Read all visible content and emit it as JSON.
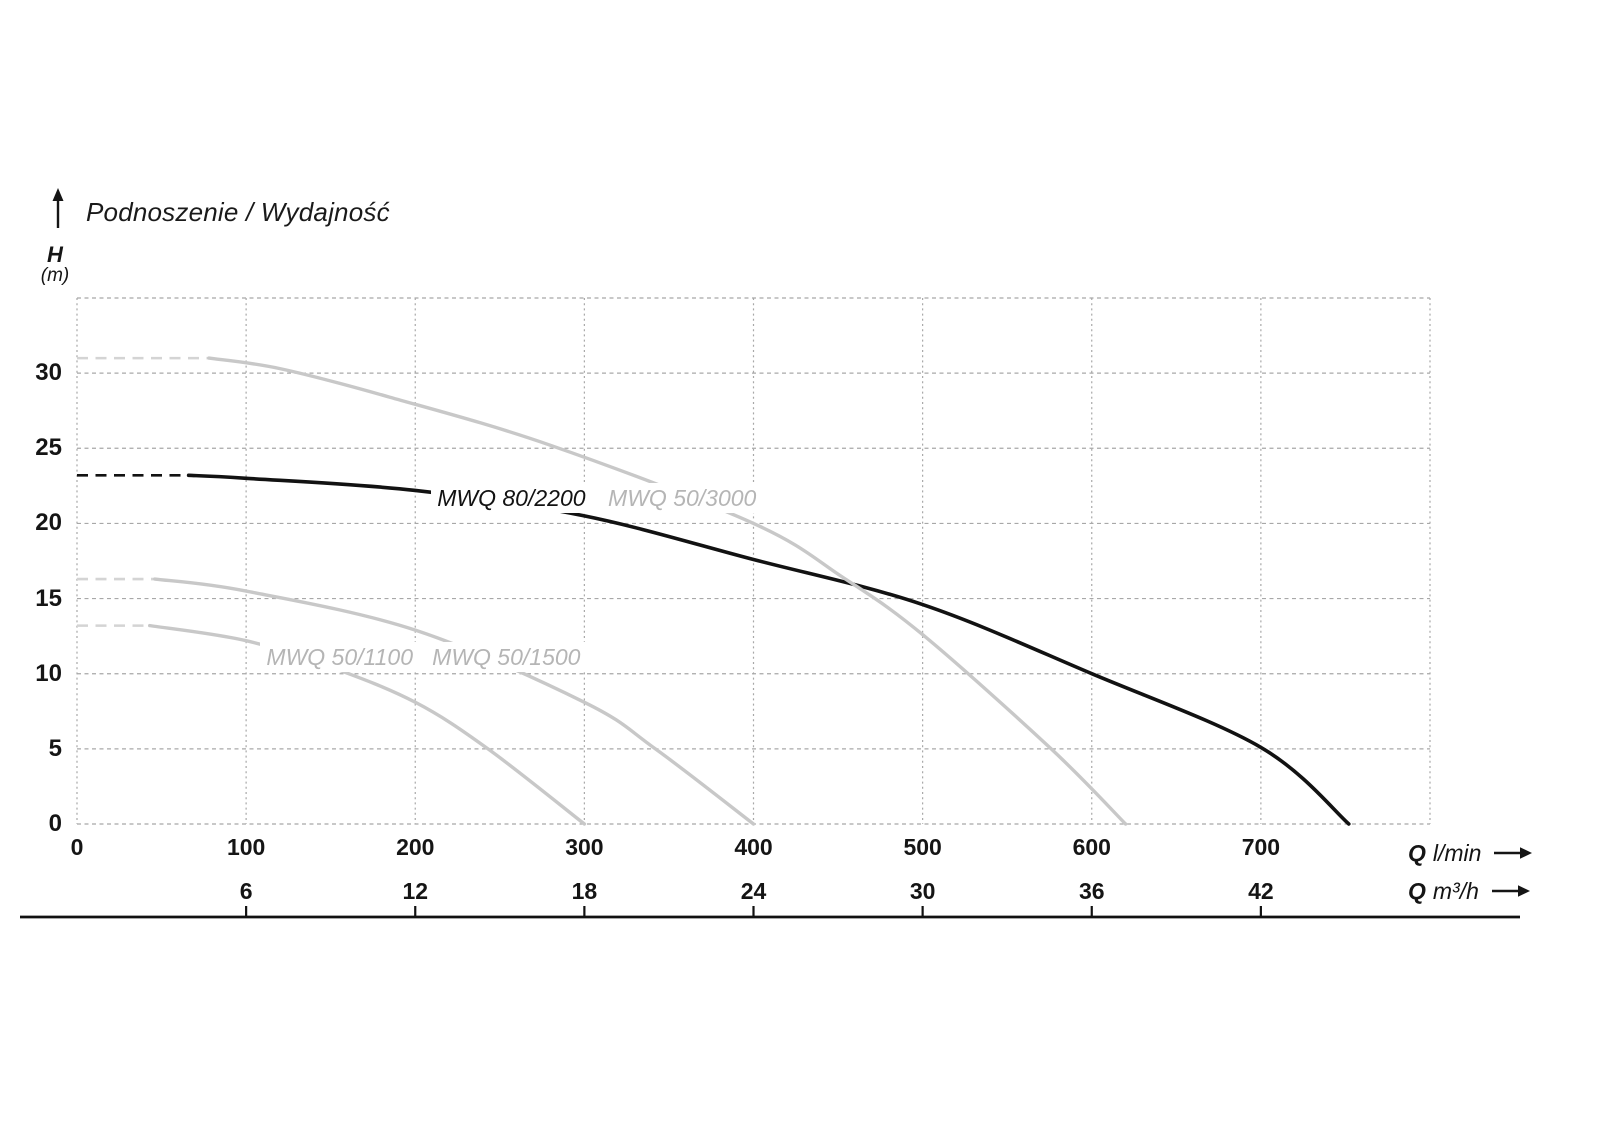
{
  "title": "Podnoszenie / Wydajność",
  "y_axis": {
    "quantity": "H",
    "unit": "(m)",
    "ticks": [
      0,
      5,
      10,
      15,
      20,
      25,
      30
    ],
    "max": 35
  },
  "x_axis_lmin": {
    "quantity": "Q",
    "unit": "l/min",
    "ticks": [
      0,
      100,
      200,
      300,
      400,
      500,
      600,
      700
    ],
    "max": 800
  },
  "x_axis_m3h": {
    "quantity": "Q",
    "unit": "m³/h",
    "ticks": [
      6,
      12,
      18,
      24,
      30,
      36,
      42
    ]
  },
  "chart_data": {
    "type": "line",
    "title": "Podnoszenie / Wydajność",
    "ylabel": "H (m)",
    "xlabel_primary": "Q l/min",
    "xlabel_secondary": "Q m³/h",
    "xlim": [
      0,
      800
    ],
    "ylim": [
      0,
      35
    ],
    "y_tick_step": 5,
    "x_tick_step": 100,
    "grid": true,
    "series": [
      {
        "name": "MWQ 80/2200",
        "color": "#121212",
        "dash_color": "#121212",
        "label_color": "#121212",
        "dashed_lead_until_q": 66,
        "points": [
          [
            0,
            23.2
          ],
          [
            66,
            23.2
          ],
          [
            100,
            23.0
          ],
          [
            200,
            22.2
          ],
          [
            300,
            20.5
          ],
          [
            400,
            17.6
          ],
          [
            500,
            14.6
          ],
          [
            600,
            10.0
          ],
          [
            700,
            5.1
          ],
          [
            752,
            0
          ]
        ],
        "label_pos": [
          213,
          21.7
        ]
      },
      {
        "name": "MWQ 50/3000",
        "color": "#c8c8c8",
        "dash_color": "#d4d4d4",
        "label_color": "#b5b5b5",
        "dashed_lead_until_q": 78,
        "points": [
          [
            0,
            31.0
          ],
          [
            78,
            31.0
          ],
          [
            120,
            30.3
          ],
          [
            185,
            28.4
          ],
          [
            280,
            25.2
          ],
          [
            400,
            20.0
          ],
          [
            453,
            16.4
          ],
          [
            500,
            12.6
          ],
          [
            576,
            5.0
          ],
          [
            620,
            0
          ]
        ],
        "label_pos": [
          314,
          21.7
        ]
      },
      {
        "name": "MWQ 50/1500",
        "color": "#c8c8c8",
        "dash_color": "#d4d4d4",
        "label_color": "#b5b5b5",
        "dashed_lead_until_q": 46,
        "points": [
          [
            0,
            16.3
          ],
          [
            46,
            16.3
          ],
          [
            100,
            15.5
          ],
          [
            200,
            12.9
          ],
          [
            300,
            8.1
          ],
          [
            342,
            5.0
          ],
          [
            400,
            0
          ]
        ],
        "label_pos": [
          210,
          11.1
        ]
      },
      {
        "name": "MWQ 50/1100",
        "color": "#c8c8c8",
        "dash_color": "#d4d4d4",
        "label_color": "#b5b5b5",
        "dashed_lead_until_q": 43,
        "points": [
          [
            0,
            13.2
          ],
          [
            43,
            13.2
          ],
          [
            100,
            12.2
          ],
          [
            151,
            10.4
          ],
          [
            200,
            8.1
          ],
          [
            243,
            5.0
          ],
          [
            300,
            0
          ]
        ],
        "label_pos": [
          112,
          11.1
        ]
      }
    ]
  },
  "colors": {
    "grid": "#a8a8a8",
    "text": "#151515",
    "axis_line": "#111111"
  }
}
